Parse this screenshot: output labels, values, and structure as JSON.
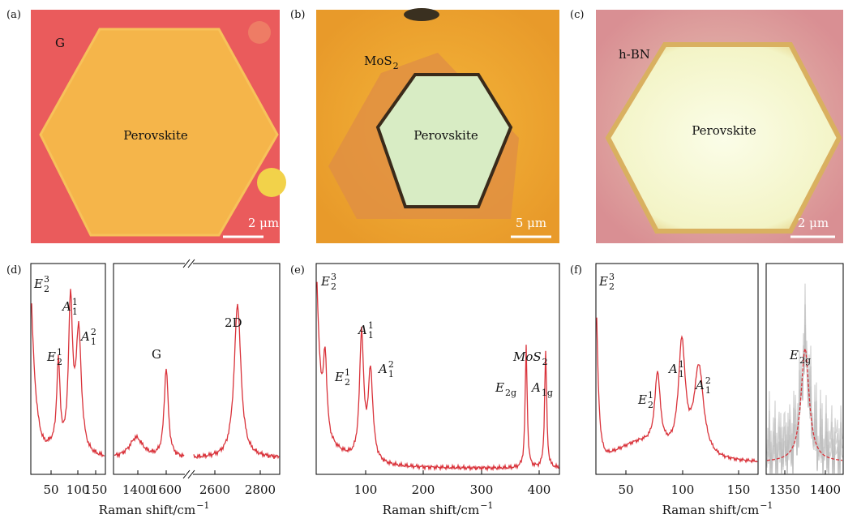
{
  "panels": [
    {
      "label": "(a)",
      "material": "G",
      "center": "Perovskite",
      "scale_bar": "2 μm"
    },
    {
      "label": "(b)",
      "material": {
        "base": "MoS",
        "sub": "2"
      },
      "center": "Perovskite",
      "scale_bar": "5 μm"
    },
    {
      "label": "(c)",
      "material": "h-BN",
      "center": "Perovskite",
      "scale_bar": "2 μm"
    },
    {
      "label": "(d)",
      "peaks": [
        {
          "base": "E",
          "sub": "2",
          "sup": "3"
        },
        {
          "base": "E",
          "sub": "2",
          "sup": "1"
        },
        {
          "base": "A",
          "sub": "1",
          "sup": "1"
        },
        {
          "base": "A",
          "sub": "1",
          "sup": "2"
        },
        "G",
        "2D"
      ],
      "xticks": [
        "50",
        "100",
        "150",
        "1400",
        "1600",
        "2600",
        "2800"
      ],
      "xlabel": {
        "base": "Raman shift/cm",
        "sup": "−1"
      }
    },
    {
      "label": "(e)",
      "peaks": [
        {
          "base": "E",
          "sub": "2",
          "sup": "3"
        },
        {
          "base": "E",
          "sub": "2",
          "sup": "1"
        },
        {
          "base": "A",
          "sub": "1",
          "sup": "1"
        },
        {
          "base": "A",
          "sub": "1",
          "sup": "2"
        },
        {
          "base": "MoS",
          "sub": "2"
        },
        {
          "base": "E",
          "sub": "2g"
        },
        {
          "base": "A",
          "sub": "1g"
        }
      ],
      "xticks": [
        "100",
        "200",
        "300",
        "400"
      ],
      "xlabel": {
        "base": "Raman shift/cm",
        "sup": "−1"
      }
    },
    {
      "label": "(f)",
      "peaks": [
        {
          "base": "E",
          "sub": "2",
          "sup": "3"
        },
        {
          "base": "E",
          "sub": "2",
          "sup": "1"
        },
        {
          "base": "A",
          "sub": "1",
          "sup": "1"
        },
        {
          "base": "A",
          "sub": "1",
          "sup": "2"
        },
        {
          "base": "E",
          "sub": "2g"
        }
      ],
      "xticks": [
        "50",
        "100",
        "150",
        "1350",
        "1400"
      ],
      "xlabel": {
        "base": "Raman shift/cm",
        "sup": "−1"
      }
    }
  ]
}
